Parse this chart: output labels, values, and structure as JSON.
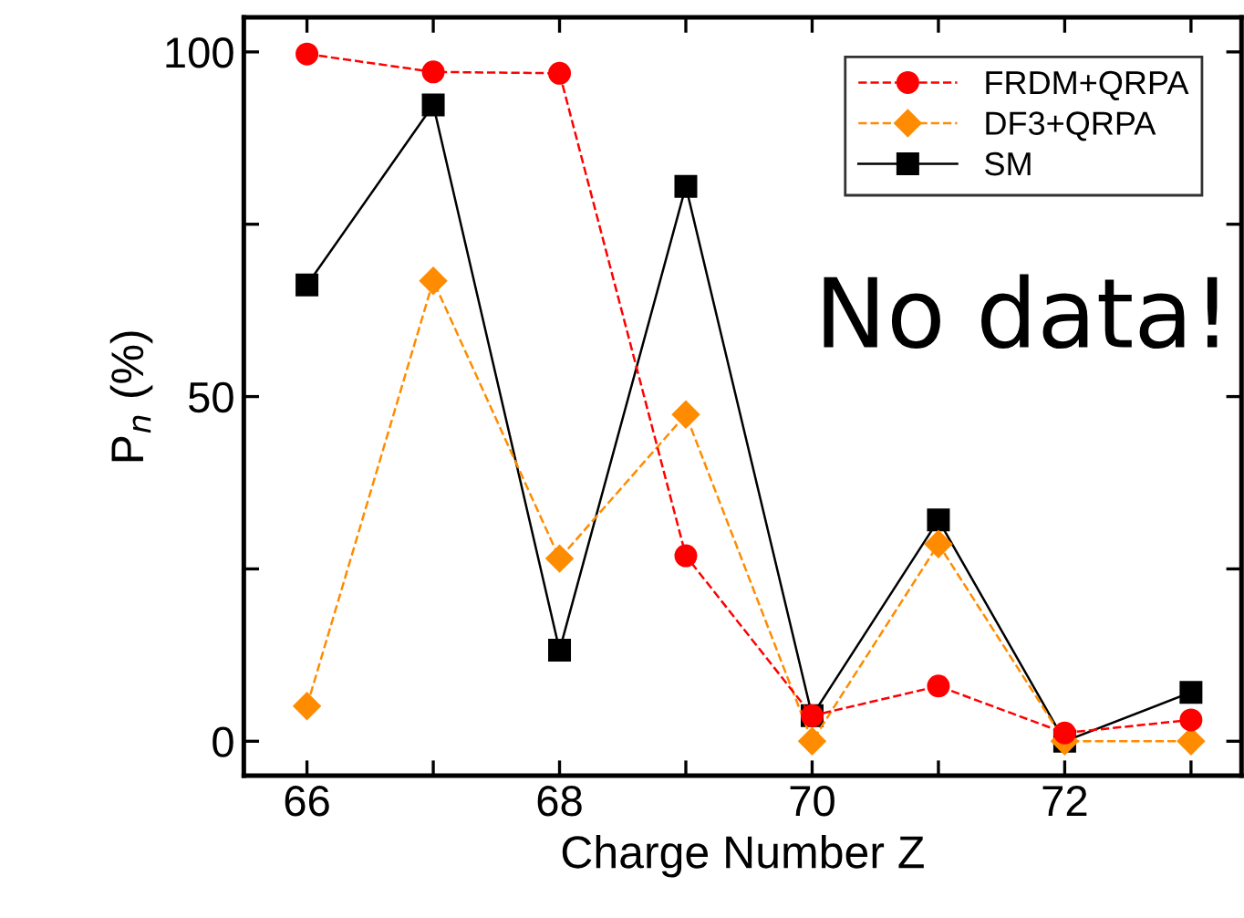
{
  "chart_data": {
    "type": "line",
    "xlabel": "Charge Number Z",
    "ylabel": "P$_{n}$ (%)",
    "x": [
      66,
      67,
      68,
      69,
      70,
      71,
      72,
      73
    ],
    "series": [
      {
        "name": "FRDM+QRPA",
        "color": "#ff0000",
        "marker": "circle",
        "line_style": "dashed",
        "values": [
          99.7,
          97.1,
          96.9,
          26.9,
          3.7,
          8.0,
          1.2,
          3.1
        ]
      },
      {
        "name": "DF3+QRPA",
        "color": "#ff8c00",
        "marker": "diamond",
        "line_style": "dashed",
        "values": [
          5.1,
          66.8,
          26.5,
          47.4,
          0,
          28.6,
          0,
          0
        ]
      },
      {
        "name": "SM",
        "color": "#000000",
        "marker": "square",
        "line_style": "solid",
        "values": [
          66.2,
          92.3,
          13.2,
          80.5,
          3.7,
          32.1,
          0,
          7.1
        ]
      }
    ],
    "xlim": [
      65.5,
      73.4
    ],
    "ylim": [
      -5,
      105
    ],
    "xticks": [
      66,
      {
        "value": 67,
        "label": null
      },
      68,
      {
        "value": 69,
        "label": null
      },
      70,
      {
        "value": 71,
        "label": null
      },
      72,
      {
        "value": 73,
        "label": null
      }
    ],
    "yticks": [
      0,
      {
        "value": 25,
        "label": null
      },
      50,
      {
        "value": 75,
        "label": null
      },
      100
    ],
    "annotations": [
      "No data!"
    ],
    "legend": "top right",
    "grid": false
  }
}
